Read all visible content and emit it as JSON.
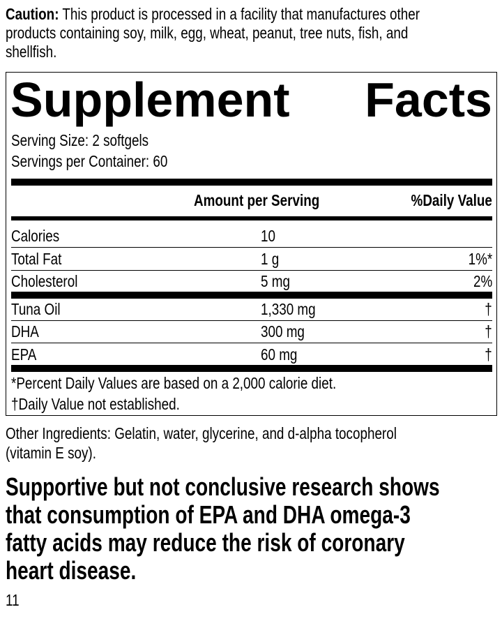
{
  "caution": {
    "label": "Caution:",
    "lines": [
      "This product is processed in a facility that manufactures other",
      "products containing soy, milk, egg, wheat, peanut, tree nuts, fish, and",
      "shellfish."
    ]
  },
  "facts": {
    "title_left": "Supplement",
    "title_right": "Facts",
    "serving_size": "Serving Size: 2 softgels",
    "servings_per_container": "Servings per Container: 60",
    "header_amount": "Amount per Serving",
    "header_dv": "%Daily Value",
    "rows": [
      {
        "name": "Calories",
        "amount": "10",
        "dv": ""
      },
      {
        "name": "Total Fat",
        "amount": "1 g",
        "dv": "1%*"
      },
      {
        "name": "Cholesterol",
        "amount": "5 mg",
        "dv": "2%"
      },
      {
        "name": "Tuna Oil",
        "amount": "1,330 mg",
        "dv": "†"
      },
      {
        "name": "DHA",
        "amount": "300 mg",
        "dv": "†"
      },
      {
        "name": "EPA",
        "amount": "60 mg",
        "dv": "†"
      }
    ],
    "footnote1": "*Percent Daily Values are based on a 2,000 calorie diet.",
    "footnote2": "†Daily Value not established."
  },
  "other_ingredients": [
    "Other Ingredients: Gelatin, water, glycerine, and d-alpha tocopherol",
    "(vitamin E soy)."
  ],
  "claim": [
    "Supportive but not conclusive research shows",
    "that consumption of EPA and DHA omega-3",
    "fatty acids may reduce the risk of coronary",
    "heart disease."
  ],
  "page_number": "11"
}
